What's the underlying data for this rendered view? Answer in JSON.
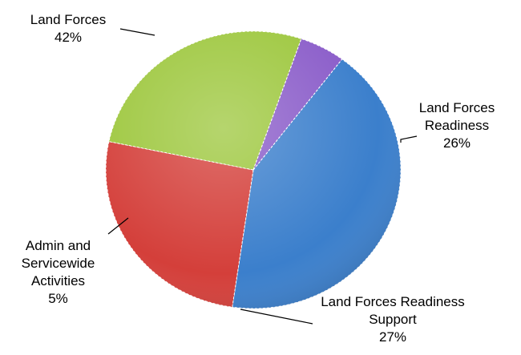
{
  "chart_data": {
    "type": "pie",
    "categories": [
      "Land Forces",
      "Land Forces Readiness",
      "Land Forces Readiness Support",
      "Admin and Servicewide Activities"
    ],
    "values": [
      42,
      26,
      27,
      5
    ],
    "value_labels": [
      "42%",
      "26%",
      "27%",
      "5%"
    ],
    "colors": [
      "#3b7fcc",
      "#d43f3a",
      "#9dc73d",
      "#8a5cc9"
    ]
  }
}
